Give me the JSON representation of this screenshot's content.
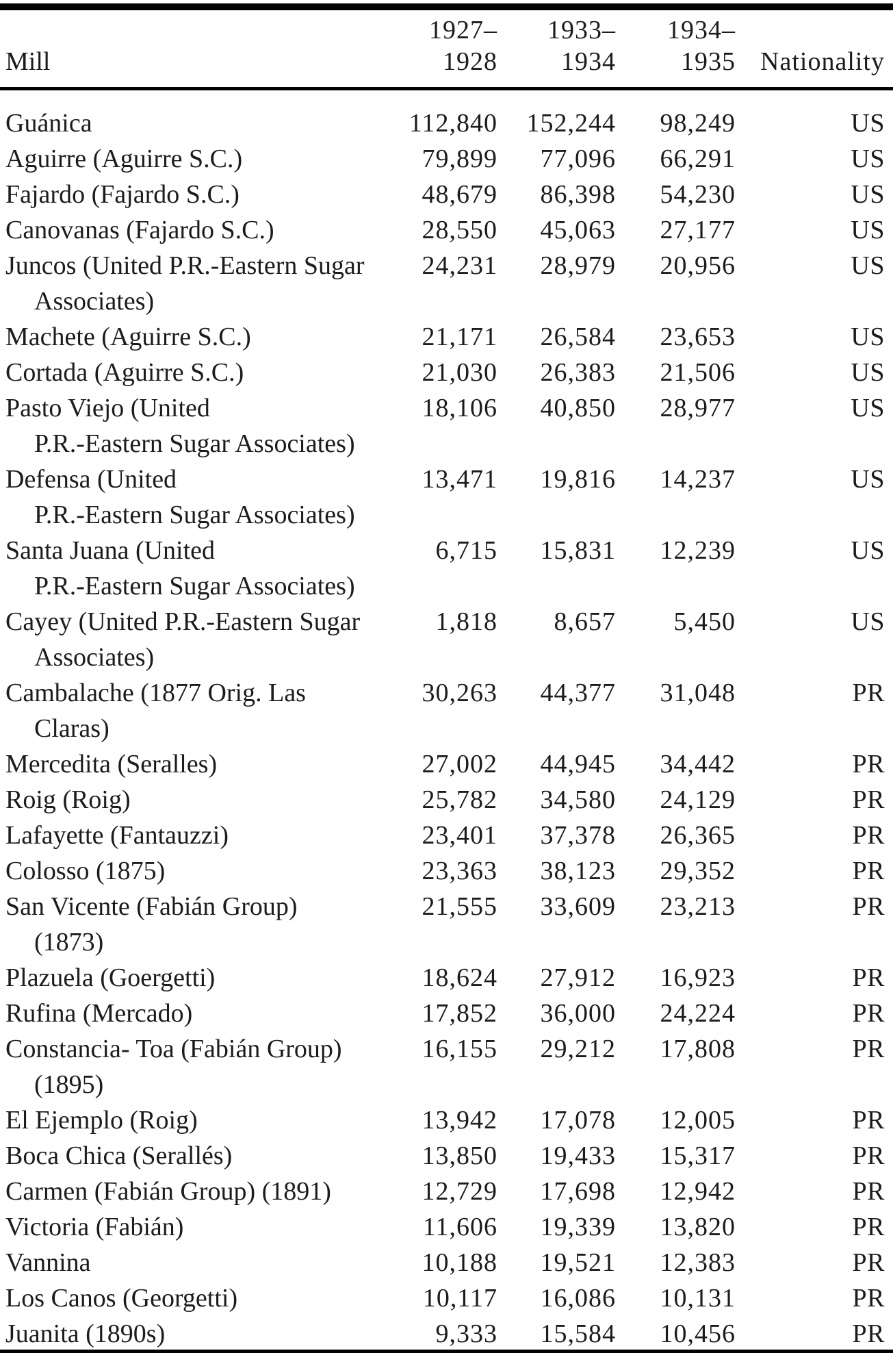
{
  "page": {
    "background_color": "#ffffff",
    "text_color": "#1c1c1c",
    "rule_color": "#000000"
  },
  "table": {
    "header": {
      "mill_label": "Mill",
      "year_columns": [
        {
          "line1": "1927–",
          "line2": "1928"
        },
        {
          "line1": "1933–",
          "line2": "1934"
        },
        {
          "line1": "1934–",
          "line2": "1935"
        }
      ],
      "nationality_label": "Nationality"
    },
    "rows": [
      {
        "mill_lines": [
          "Guánica"
        ],
        "values": [
          "112,840",
          "152,244",
          "98,249"
        ],
        "nationality": "US"
      },
      {
        "mill_lines": [
          "Aguirre (Aguirre S.C.)"
        ],
        "values": [
          "79,899",
          "77,096",
          "66,291"
        ],
        "nationality": "US"
      },
      {
        "mill_lines": [
          "Fajardo (Fajardo S.C.)"
        ],
        "values": [
          "48,679",
          "86,398",
          "54,230"
        ],
        "nationality": "US"
      },
      {
        "mill_lines": [
          "Canovanas (Fajardo S.C.)"
        ],
        "values": [
          "28,550",
          "45,063",
          "27,177"
        ],
        "nationality": "US"
      },
      {
        "mill_lines": [
          "Juncos (United P.R.-Eastern Sugar",
          "Associates)"
        ],
        "values": [
          "24,231",
          "28,979",
          "20,956"
        ],
        "nationality": "US"
      },
      {
        "mill_lines": [
          "Machete (Aguirre S.C.)"
        ],
        "values": [
          "21,171",
          "26,584",
          "23,653"
        ],
        "nationality": "US"
      },
      {
        "mill_lines": [
          "Cortada (Aguirre S.C.)"
        ],
        "values": [
          "21,030",
          "26,383",
          "21,506"
        ],
        "nationality": "US"
      },
      {
        "mill_lines": [
          "Pasto Viejo (United",
          "P.R.-Eastern Sugar Associates)"
        ],
        "values": [
          "18,106",
          "40,850",
          "28,977"
        ],
        "nationality": "US"
      },
      {
        "mill_lines": [
          "Defensa (United",
          "P.R.-Eastern Sugar Associates)"
        ],
        "values": [
          "13,471",
          "19,816",
          "14,237"
        ],
        "nationality": "US"
      },
      {
        "mill_lines": [
          "Santa Juana (United",
          "P.R.-Eastern Sugar Associates)"
        ],
        "values": [
          "6,715",
          "15,831",
          "12,239"
        ],
        "nationality": "US"
      },
      {
        "mill_lines": [
          "Cayey (United P.R.-Eastern Sugar",
          "Associates)"
        ],
        "values": [
          "1,818",
          "8,657",
          "5,450"
        ],
        "nationality": "US"
      },
      {
        "mill_lines": [
          "Cambalache (1877 Orig. Las",
          "Claras)"
        ],
        "values": [
          "30,263",
          "44,377",
          "31,048"
        ],
        "nationality": "PR"
      },
      {
        "mill_lines": [
          "Mercedita (Seralles)"
        ],
        "values": [
          "27,002",
          "44,945",
          "34,442"
        ],
        "nationality": "PR"
      },
      {
        "mill_lines": [
          "Roig (Roig)"
        ],
        "values": [
          "25,782",
          "34,580",
          "24,129"
        ],
        "nationality": "PR"
      },
      {
        "mill_lines": [
          "Lafayette (Fantauzzi)"
        ],
        "values": [
          "23,401",
          "37,378",
          "26,365"
        ],
        "nationality": "PR"
      },
      {
        "mill_lines": [
          "Colosso (1875)"
        ],
        "values": [
          "23,363",
          "38,123",
          "29,352"
        ],
        "nationality": "PR"
      },
      {
        "mill_lines": [
          "San Vicente (Fabián Group)",
          "(1873)"
        ],
        "values": [
          "21,555",
          "33,609",
          "23,213"
        ],
        "nationality": "PR"
      },
      {
        "mill_lines": [
          "Plazuela (Goergetti)"
        ],
        "values": [
          "18,624",
          "27,912",
          "16,923"
        ],
        "nationality": "PR"
      },
      {
        "mill_lines": [
          "Rufina (Mercado)"
        ],
        "values": [
          "17,852",
          "36,000",
          "24,224"
        ],
        "nationality": "PR"
      },
      {
        "mill_lines": [
          "Constancia- Toa (Fabián Group)",
          "(1895)"
        ],
        "values": [
          "16,155",
          "29,212",
          "17,808"
        ],
        "nationality": "PR"
      },
      {
        "mill_lines": [
          "El Ejemplo (Roig)"
        ],
        "values": [
          "13,942",
          "17,078",
          "12,005"
        ],
        "nationality": "PR"
      },
      {
        "mill_lines": [
          "Boca Chica (Serallés)"
        ],
        "values": [
          "13,850",
          "19,433",
          "15,317"
        ],
        "nationality": "PR"
      },
      {
        "mill_lines": [
          "Carmen (Fabián Group) (1891)"
        ],
        "values": [
          "12,729",
          "17,698",
          "12,942"
        ],
        "nationality": "PR"
      },
      {
        "mill_lines": [
          "Victoria (Fabián)"
        ],
        "values": [
          "11,606",
          "19,339",
          "13,820"
        ],
        "nationality": "PR"
      },
      {
        "mill_lines": [
          "Vannina"
        ],
        "values": [
          "10,188",
          "19,521",
          "12,383"
        ],
        "nationality": "PR"
      },
      {
        "mill_lines": [
          "Los Canos (Georgetti)"
        ],
        "values": [
          "10,117",
          "16,086",
          "10,131"
        ],
        "nationality": "PR"
      },
      {
        "mill_lines": [
          "Juanita (1890s)"
        ],
        "values": [
          "9,333",
          "15,584",
          "10,456"
        ],
        "nationality": "PR"
      }
    ]
  }
}
